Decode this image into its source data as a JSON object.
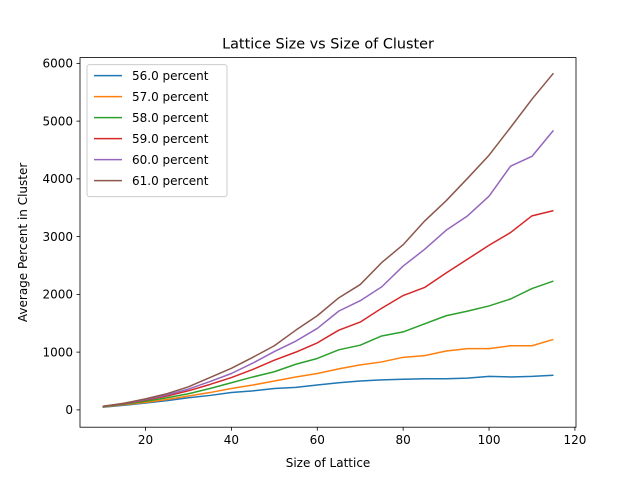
{
  "chart_data": {
    "type": "line",
    "title": "Lattice Size vs Size of Cluster",
    "xlabel": "Size of Lattice",
    "ylabel": "Average Percent in Cluster",
    "xlim": [
      4.75,
      120.25
    ],
    "ylim": [
      -300,
      6100
    ],
    "xticks": [
      20,
      40,
      60,
      80,
      100,
      120
    ],
    "yticks": [
      0,
      1000,
      2000,
      3000,
      4000,
      5000,
      6000
    ],
    "grid": false,
    "legend_position": "top-left",
    "x": [
      10,
      15,
      20,
      25,
      30,
      35,
      40,
      45,
      50,
      55,
      60,
      65,
      70,
      75,
      80,
      85,
      90,
      95,
      100,
      105,
      110,
      115
    ],
    "series": [
      {
        "name": "56.0 percent",
        "color": "#1f77b4",
        "values": [
          45,
          80,
          120,
          160,
          210,
          250,
          300,
          330,
          370,
          390,
          430,
          470,
          500,
          520,
          530,
          540,
          540,
          550,
          580,
          570,
          580,
          600
        ]
      },
      {
        "name": "57.0 percent",
        "color": "#ff7f0e",
        "values": [
          50,
          90,
          130,
          180,
          240,
          300,
          370,
          430,
          500,
          570,
          630,
          710,
          780,
          830,
          910,
          940,
          1020,
          1060,
          1060,
          1110,
          1110,
          1220
        ]
      },
      {
        "name": "58.0 percent",
        "color": "#2ca02c",
        "values": [
          55,
          100,
          150,
          210,
          280,
          370,
          470,
          570,
          660,
          790,
          890,
          1040,
          1120,
          1280,
          1350,
          1490,
          1630,
          1710,
          1800,
          1920,
          2100,
          2230
        ]
      },
      {
        "name": "59.0 percent",
        "color": "#d62728",
        "values": [
          60,
          105,
          170,
          240,
          330,
          440,
          560,
          700,
          860,
          1000,
          1160,
          1380,
          1520,
          1760,
          1980,
          2120,
          2370,
          2610,
          2850,
          3070,
          3360,
          3450
        ]
      },
      {
        "name": "60.0 percent",
        "color": "#9467bd",
        "values": [
          60,
          110,
          180,
          260,
          360,
          490,
          630,
          810,
          1010,
          1190,
          1410,
          1710,
          1890,
          2130,
          2490,
          2780,
          3110,
          3360,
          3700,
          4220,
          4390,
          4840
        ]
      },
      {
        "name": "61.0 percent",
        "color": "#8c564b",
        "values": [
          60,
          115,
          190,
          280,
          400,
          560,
          720,
          910,
          1110,
          1380,
          1630,
          1940,
          2170,
          2550,
          2860,
          3270,
          3620,
          4010,
          4410,
          4890,
          5380,
          5830
        ]
      }
    ]
  }
}
